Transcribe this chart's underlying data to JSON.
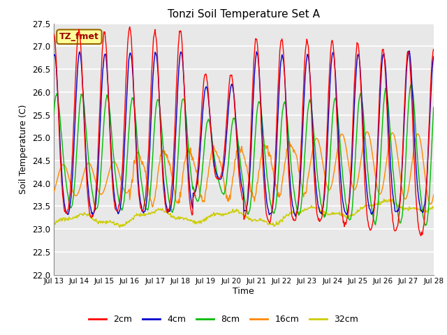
{
  "title": "Tonzi Soil Temperature Set A",
  "xlabel": "Time",
  "ylabel": "Soil Temperature (C)",
  "annotation": "TZ_fmet",
  "ylim": [
    22.0,
    27.5
  ],
  "yticks": [
    22.0,
    22.5,
    23.0,
    23.5,
    24.0,
    24.5,
    25.0,
    25.5,
    26.0,
    26.5,
    27.0,
    27.5
  ],
  "xtick_labels": [
    "Jul 13",
    "Jul 14",
    "Jul 15",
    "Jul 16",
    "Jul 17",
    "Jul 18",
    "Jul 19",
    "Jul 20",
    "Jul 21",
    "Jul 22",
    "Jul 23",
    "Jul 24",
    "Jul 25",
    "Jul 26",
    "Jul 27",
    "Jul 28"
  ],
  "colors": {
    "2cm": "#ff0000",
    "4cm": "#0000cc",
    "8cm": "#00bb00",
    "16cm": "#ff8800",
    "32cm": "#cccc00"
  },
  "legend_labels": [
    "2cm",
    "4cm",
    "8cm",
    "16cm",
    "32cm"
  ],
  "plot_bg_color": "#e8e8e8",
  "annotation_bg": "#ffff99",
  "annotation_border": "#996600",
  "grid_color": "#ffffff",
  "num_points": 720
}
